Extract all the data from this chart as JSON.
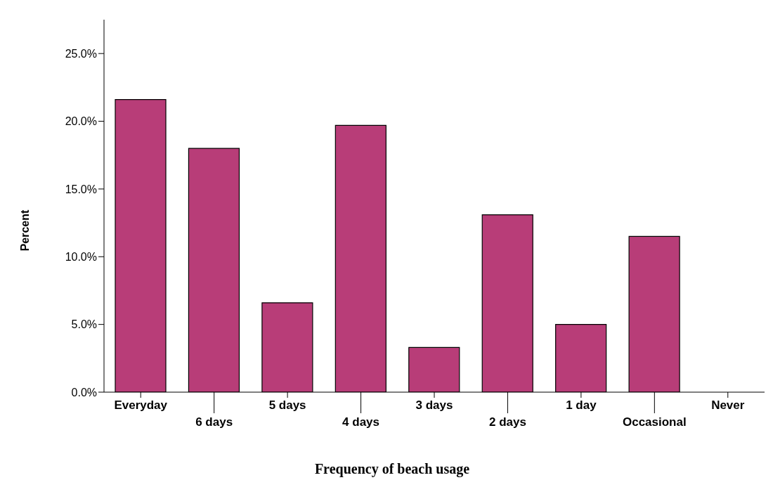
{
  "chart_data": {
    "type": "bar",
    "xlabel": "Frequency of beach usage",
    "ylabel": "Percent",
    "categories": [
      "Everyday",
      "6 days",
      "5 days",
      "4 days",
      "3 days",
      "2 days",
      "1 day",
      "Occasional",
      "Never"
    ],
    "values": [
      21.6,
      18.0,
      6.6,
      19.7,
      3.3,
      13.1,
      5.0,
      11.5,
      0
    ],
    "color": "#b83d78",
    "ylim": [
      0,
      27.5
    ],
    "yticks": [
      {
        "value": 0,
        "label": "0.0%"
      },
      {
        "value": 5,
        "label": "5.0%"
      },
      {
        "value": 10,
        "label": "10.0%"
      },
      {
        "value": 15,
        "label": "15.0%"
      },
      {
        "value": 20,
        "label": "20.0%"
      },
      {
        "value": 25,
        "label": "25.0%"
      }
    ],
    "grid": false,
    "legend": false
  }
}
